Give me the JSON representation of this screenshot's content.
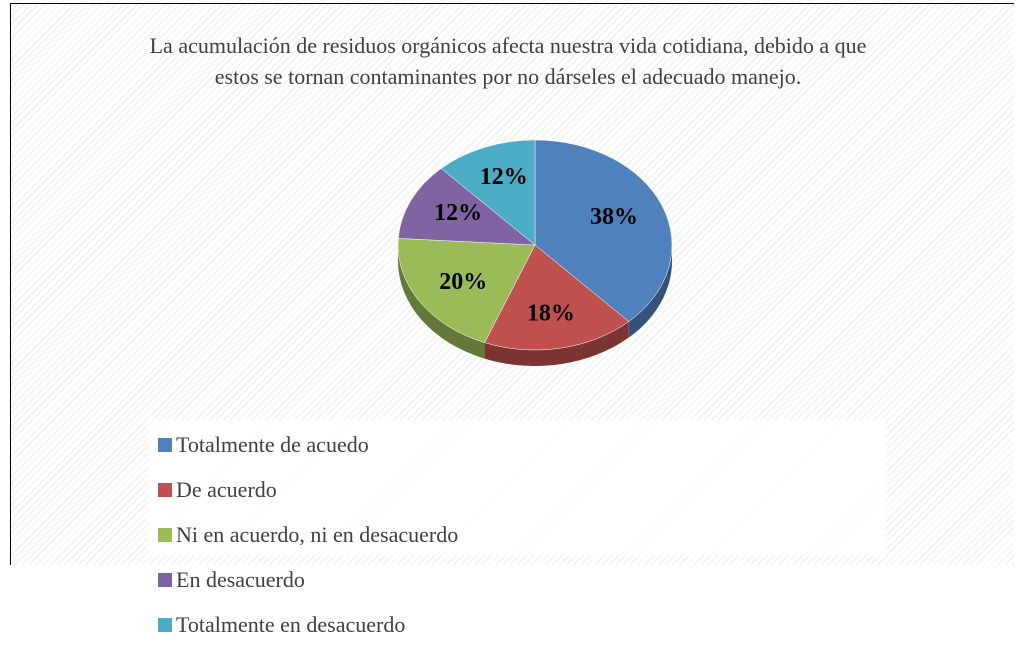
{
  "chart_data": {
    "type": "pie",
    "title": "La acumulación de residuos orgánicos afecta nuestra vida cotidiana, debido a que estos se tornan contaminantes por no dárseles el adecuado manejo.",
    "categories": [
      "Totalmente de acuedo",
      "De acuerdo",
      "Ni en acuerdo, ni en desacuerdo",
      "En desacuerdo",
      "Totalmente en desacuerdo"
    ],
    "values": [
      38,
      18,
      20,
      12,
      12
    ],
    "value_labels": [
      "38%",
      "18%",
      "20%",
      "12%",
      "12%"
    ],
    "colors": [
      "#4f81bd",
      "#c0504d",
      "#9bbb59",
      "#8064a2",
      "#4bacc6"
    ],
    "legend": "bottom"
  }
}
